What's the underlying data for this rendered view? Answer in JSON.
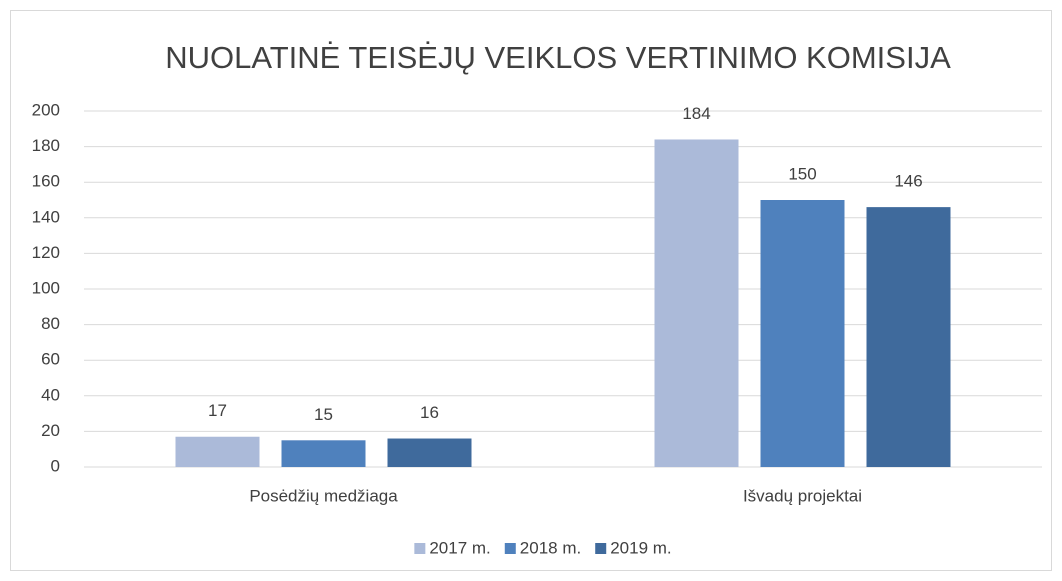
{
  "chart_data": {
    "type": "bar",
    "title": "NUOLATINĖ TEISĖJŲ VEIKLOS VERTINIMO KOMISIJA",
    "categories": [
      "Posėdžių medžiaga",
      "Išvadų projektai"
    ],
    "series": [
      {
        "name": "2017 m.",
        "color": "#abbad9",
        "values": [
          17,
          184
        ]
      },
      {
        "name": "2018 m.",
        "color": "#4f81bd",
        "values": [
          15,
          150
        ]
      },
      {
        "name": "2019 m.",
        "color": "#3f6a9c",
        "values": [
          16,
          146
        ]
      }
    ],
    "ylim": [
      0,
      200
    ],
    "yticks": [
      0,
      20,
      40,
      60,
      80,
      100,
      120,
      140,
      160,
      180,
      200
    ],
    "grid": true,
    "legend": "bottom",
    "data_labels": true
  }
}
